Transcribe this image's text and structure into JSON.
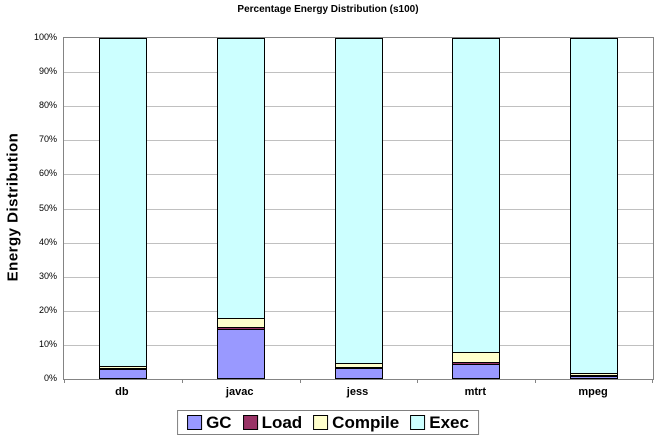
{
  "chart_data": {
    "type": "bar",
    "stacked": true,
    "title": "Percentage Energy Distribution (s100)",
    "ylabel": "Energy Distribution",
    "xlabel": "",
    "categories": [
      "db",
      "javac",
      "jess",
      "mtrt",
      "mpeg"
    ],
    "series": [
      {
        "name": "GC",
        "color": "#9999FF",
        "values": [
          2.5,
          14.5,
          2.8,
          4.2,
          0.5
        ]
      },
      {
        "name": "Load",
        "color": "#993366",
        "values": [
          0.4,
          0.5,
          0.4,
          0.4,
          0.2
        ]
      },
      {
        "name": "Compile",
        "color": "#FFFFCC",
        "values": [
          0.6,
          2.5,
          1.3,
          3.0,
          0.8
        ]
      },
      {
        "name": "Exec",
        "color": "#CCFFFF",
        "values": [
          96.5,
          82.5,
          95.5,
          92.4,
          98.5
        ]
      }
    ],
    "y_ticks": [
      "0%",
      "10%",
      "20%",
      "30%",
      "40%",
      "50%",
      "60%",
      "70%",
      "80%",
      "90%",
      "100%"
    ],
    "ylim": [
      0,
      100
    ],
    "grid": true,
    "legend_position": "bottom",
    "colors": {
      "gridline": "#C0C0C0",
      "axis": "#848484",
      "bar_border": "#000000",
      "background": "#FFFFFF"
    }
  }
}
